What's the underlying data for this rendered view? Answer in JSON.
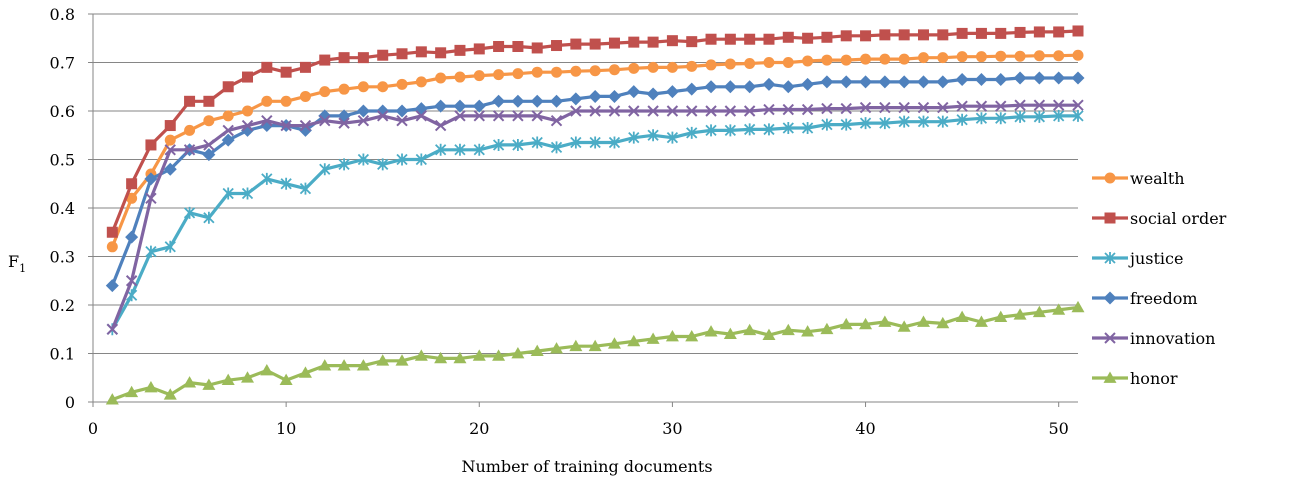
{
  "chart_data": {
    "type": "line",
    "xlabel": "Number of training documents",
    "ylabel": "F",
    "ylabel_sub": "1",
    "xlim": [
      0,
      51
    ],
    "ylim": [
      0,
      0.8
    ],
    "xticks": [
      0,
      10,
      20,
      30,
      40,
      50
    ],
    "yticks": [
      0,
      0.1,
      0.2,
      0.3,
      0.4,
      0.5,
      0.6,
      0.7,
      0.8
    ],
    "ytick_labels": [
      "0",
      "0.1",
      "0.2",
      "0.3",
      "0.4",
      "0.5",
      "0.6",
      "0.7",
      "0.8"
    ],
    "grid": "horizontal",
    "legend_position": "right",
    "x": [
      1,
      2,
      3,
      4,
      5,
      6,
      7,
      8,
      9,
      10,
      11,
      12,
      13,
      14,
      15,
      16,
      17,
      18,
      19,
      20,
      21,
      22,
      23,
      24,
      25,
      26,
      27,
      28,
      29,
      30,
      31,
      32,
      33,
      34,
      35,
      36,
      37,
      38,
      39,
      40,
      41,
      42,
      43,
      44,
      45,
      46,
      47,
      48,
      49,
      50,
      51
    ],
    "series": [
      {
        "name": "wealth",
        "color": "#f79646",
        "marker": "circle",
        "values": [
          0.32,
          0.42,
          0.47,
          0.54,
          0.56,
          0.58,
          0.59,
          0.6,
          0.62,
          0.62,
          0.63,
          0.64,
          0.645,
          0.65,
          0.65,
          0.655,
          0.66,
          0.668,
          0.67,
          0.673,
          0.675,
          0.677,
          0.68,
          0.68,
          0.682,
          0.683,
          0.685,
          0.688,
          0.69,
          0.69,
          0.692,
          0.695,
          0.697,
          0.698,
          0.7,
          0.7,
          0.703,
          0.705,
          0.705,
          0.707,
          0.707,
          0.707,
          0.71,
          0.71,
          0.712,
          0.712,
          0.713,
          0.713,
          0.714,
          0.714,
          0.715
        ]
      },
      {
        "name": "social order",
        "color": "#c0504d",
        "marker": "square",
        "values": [
          0.35,
          0.45,
          0.53,
          0.57,
          0.62,
          0.62,
          0.65,
          0.67,
          0.69,
          0.68,
          0.69,
          0.705,
          0.71,
          0.71,
          0.715,
          0.718,
          0.722,
          0.72,
          0.725,
          0.728,
          0.733,
          0.733,
          0.73,
          0.735,
          0.738,
          0.738,
          0.74,
          0.742,
          0.742,
          0.745,
          0.743,
          0.748,
          0.748,
          0.748,
          0.748,
          0.752,
          0.75,
          0.752,
          0.755,
          0.755,
          0.757,
          0.757,
          0.757,
          0.757,
          0.76,
          0.76,
          0.76,
          0.762,
          0.763,
          0.763,
          0.765
        ]
      },
      {
        "name": "justice",
        "color": "#4bacc6",
        "marker": "star",
        "values": [
          0.15,
          0.22,
          0.31,
          0.32,
          0.39,
          0.38,
          0.43,
          0.43,
          0.46,
          0.45,
          0.44,
          0.48,
          0.49,
          0.5,
          0.49,
          0.5,
          0.5,
          0.52,
          0.52,
          0.52,
          0.53,
          0.53,
          0.535,
          0.525,
          0.535,
          0.535,
          0.535,
          0.545,
          0.55,
          0.545,
          0.555,
          0.56,
          0.56,
          0.562,
          0.562,
          0.565,
          0.565,
          0.572,
          0.572,
          0.575,
          0.575,
          0.578,
          0.578,
          0.578,
          0.582,
          0.585,
          0.585,
          0.588,
          0.588,
          0.59,
          0.59
        ]
      },
      {
        "name": "freedom",
        "color": "#4f81bd",
        "marker": "diamond",
        "values": [
          0.24,
          0.34,
          0.46,
          0.48,
          0.52,
          0.51,
          0.54,
          0.56,
          0.57,
          0.57,
          0.56,
          0.59,
          0.59,
          0.6,
          0.6,
          0.6,
          0.605,
          0.61,
          0.61,
          0.61,
          0.62,
          0.62,
          0.62,
          0.62,
          0.625,
          0.63,
          0.63,
          0.64,
          0.635,
          0.64,
          0.645,
          0.65,
          0.65,
          0.65,
          0.655,
          0.65,
          0.655,
          0.66,
          0.66,
          0.66,
          0.66,
          0.66,
          0.66,
          0.66,
          0.665,
          0.665,
          0.665,
          0.668,
          0.668,
          0.668,
          0.668
        ]
      },
      {
        "name": "innovation",
        "color": "#8064a2",
        "marker": "x",
        "values": [
          0.15,
          0.25,
          0.42,
          0.52,
          0.52,
          0.53,
          0.56,
          0.57,
          0.58,
          0.57,
          0.57,
          0.58,
          0.575,
          0.58,
          0.59,
          0.58,
          0.59,
          0.57,
          0.59,
          0.59,
          0.59,
          0.59,
          0.59,
          0.58,
          0.6,
          0.6,
          0.6,
          0.6,
          0.6,
          0.6,
          0.6,
          0.6,
          0.6,
          0.6,
          0.603,
          0.603,
          0.603,
          0.605,
          0.605,
          0.607,
          0.607,
          0.607,
          0.607,
          0.607,
          0.61,
          0.61,
          0.61,
          0.612,
          0.612,
          0.612,
          0.612
        ]
      },
      {
        "name": "honor",
        "color": "#9bbb59",
        "marker": "triangle",
        "values": [
          0.005,
          0.02,
          0.03,
          0.015,
          0.04,
          0.035,
          0.045,
          0.05,
          0.065,
          0.045,
          0.06,
          0.075,
          0.075,
          0.075,
          0.085,
          0.085,
          0.095,
          0.09,
          0.09,
          0.095,
          0.095,
          0.1,
          0.105,
          0.11,
          0.115,
          0.115,
          0.12,
          0.125,
          0.13,
          0.135,
          0.135,
          0.145,
          0.14,
          0.148,
          0.138,
          0.148,
          0.145,
          0.15,
          0.16,
          0.16,
          0.165,
          0.155,
          0.165,
          0.162,
          0.175,
          0.165,
          0.175,
          0.18,
          0.185,
          0.19,
          0.195
        ]
      }
    ]
  }
}
